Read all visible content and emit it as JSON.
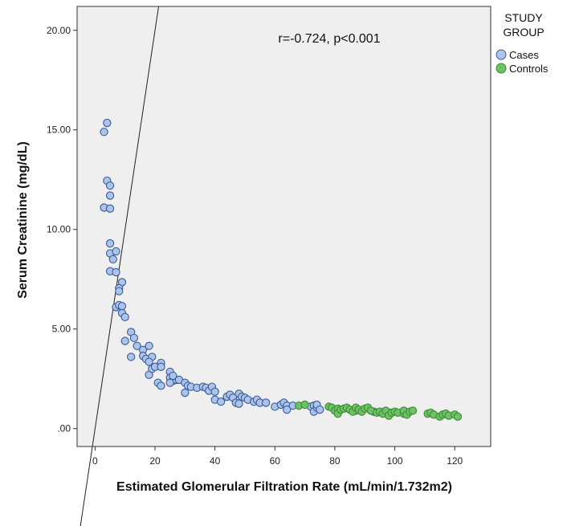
{
  "chart_data": {
    "type": "scatter",
    "xlabel": "Estimated Glomerular Filtration Rate (mL/min/1.732m2)",
    "ylabel": "Serum Creatinine (mg/dL)",
    "xlim": [
      -6,
      132
    ],
    "ylim": [
      -0.9,
      21.2
    ],
    "x_ticks": [
      0,
      20,
      40,
      60,
      80,
      100,
      120
    ],
    "x_tick_labels": [
      "0",
      "20",
      "40",
      "60",
      "80",
      "100",
      "120"
    ],
    "y_ticks": [
      0,
      5,
      10,
      15,
      20
    ],
    "y_tick_labels": [
      ".00",
      "5.00",
      "10.00",
      "15.00",
      "20.00"
    ],
    "annotation": "r=-0.724, p<0.001",
    "reference_line": {
      "name": "identity",
      "from": [
        -6,
        -6
      ],
      "to": [
        21.2,
        21.2
      ]
    },
    "legend": {
      "title_lines": [
        "STUDY",
        "GROUP"
      ],
      "position": "top-right"
    },
    "series": [
      {
        "name": "Cases",
        "color": "#aac4ee",
        "stroke": "#3b5b91",
        "points": [
          [
            3,
            14.9
          ],
          [
            4,
            15.35
          ],
          [
            4,
            12.45
          ],
          [
            5,
            12.2
          ],
          [
            3,
            11.1
          ],
          [
            5,
            11.05
          ],
          [
            5,
            11.7
          ],
          [
            5,
            9.3
          ],
          [
            5,
            8.8
          ],
          [
            6,
            8.5
          ],
          [
            7,
            8.9
          ],
          [
            5,
            7.9
          ],
          [
            7,
            7.85
          ],
          [
            9,
            7.35
          ],
          [
            8,
            7.05
          ],
          [
            8,
            6.9
          ],
          [
            7,
            6.1
          ],
          [
            8,
            6.2
          ],
          [
            9,
            6.15
          ],
          [
            9,
            5.8
          ],
          [
            10,
            5.6
          ],
          [
            10,
            4.4
          ],
          [
            12,
            4.85
          ],
          [
            12,
            3.6
          ],
          [
            13,
            4.55
          ],
          [
            14,
            4.15
          ],
          [
            16,
            3.95
          ],
          [
            16,
            3.65
          ],
          [
            17,
            3.5
          ],
          [
            18,
            4.15
          ],
          [
            19,
            3.6
          ],
          [
            18,
            3.35
          ],
          [
            18,
            2.7
          ],
          [
            19,
            3.0
          ],
          [
            20,
            3.1
          ],
          [
            21,
            2.3
          ],
          [
            22,
            3.3
          ],
          [
            22,
            3.1
          ],
          [
            22,
            2.15
          ],
          [
            25,
            2.85
          ],
          [
            25,
            2.55
          ],
          [
            26,
            2.4
          ],
          [
            27,
            2.45
          ],
          [
            25,
            2.3
          ],
          [
            26,
            2.65
          ],
          [
            28,
            2.45
          ],
          [
            30,
            2.3
          ],
          [
            30,
            1.8
          ],
          [
            31,
            2.15
          ],
          [
            32,
            2.1
          ],
          [
            34,
            2.05
          ],
          [
            36,
            2.1
          ],
          [
            37,
            2.05
          ],
          [
            38,
            1.9
          ],
          [
            39,
            2.1
          ],
          [
            40,
            1.85
          ],
          [
            40,
            1.45
          ],
          [
            42,
            1.35
          ],
          [
            44,
            1.6
          ],
          [
            45,
            1.7
          ],
          [
            46,
            1.55
          ],
          [
            47,
            1.3
          ],
          [
            48,
            1.25
          ],
          [
            48,
            1.75
          ],
          [
            49,
            1.6
          ],
          [
            50,
            1.55
          ],
          [
            51,
            1.45
          ],
          [
            53,
            1.35
          ],
          [
            54,
            1.45
          ],
          [
            55,
            1.3
          ],
          [
            57,
            1.3
          ],
          [
            60,
            1.1
          ],
          [
            62,
            1.2
          ],
          [
            63,
            1.3
          ],
          [
            64,
            1.15
          ],
          [
            64,
            0.95
          ],
          [
            66,
            1.15
          ],
          [
            72,
            1.1
          ],
          [
            73,
            1.15
          ],
          [
            73,
            0.85
          ],
          [
            74,
            1.05
          ],
          [
            74,
            1.2
          ],
          [
            75,
            0.95
          ],
          [
            87,
            0.9
          ],
          [
            93,
            0.85
          ],
          [
            98,
            0.8
          ]
        ]
      },
      {
        "name": "Controls",
        "color": "#6cc264",
        "stroke": "#3f8a36",
        "points": [
          [
            68,
            1.15
          ],
          [
            70,
            1.2
          ],
          [
            78,
            1.1
          ],
          [
            79,
            1.05
          ],
          [
            80,
            0.9
          ],
          [
            81,
            1.0
          ],
          [
            81,
            0.75
          ],
          [
            82,
            0.95
          ],
          [
            83,
            1.0
          ],
          [
            84,
            1.05
          ],
          [
            85,
            0.95
          ],
          [
            86,
            0.85
          ],
          [
            87,
            1.05
          ],
          [
            88,
            0.95
          ],
          [
            89,
            0.85
          ],
          [
            90,
            1.0
          ],
          [
            91,
            1.05
          ],
          [
            92,
            0.9
          ],
          [
            94,
            0.8
          ],
          [
            95,
            0.85
          ],
          [
            96,
            0.75
          ],
          [
            97,
            0.9
          ],
          [
            98,
            0.65
          ],
          [
            99,
            0.8
          ],
          [
            100,
            0.85
          ],
          [
            101,
            0.8
          ],
          [
            103,
            0.75
          ],
          [
            103,
            0.9
          ],
          [
            104,
            0.7
          ],
          [
            105,
            0.85
          ],
          [
            106,
            0.9
          ],
          [
            111,
            0.75
          ],
          [
            112,
            0.8
          ],
          [
            113,
            0.7
          ],
          [
            115,
            0.6
          ],
          [
            116,
            0.7
          ],
          [
            117,
            0.75
          ],
          [
            118,
            0.65
          ],
          [
            120,
            0.7
          ],
          [
            121,
            0.6
          ]
        ]
      }
    ]
  }
}
